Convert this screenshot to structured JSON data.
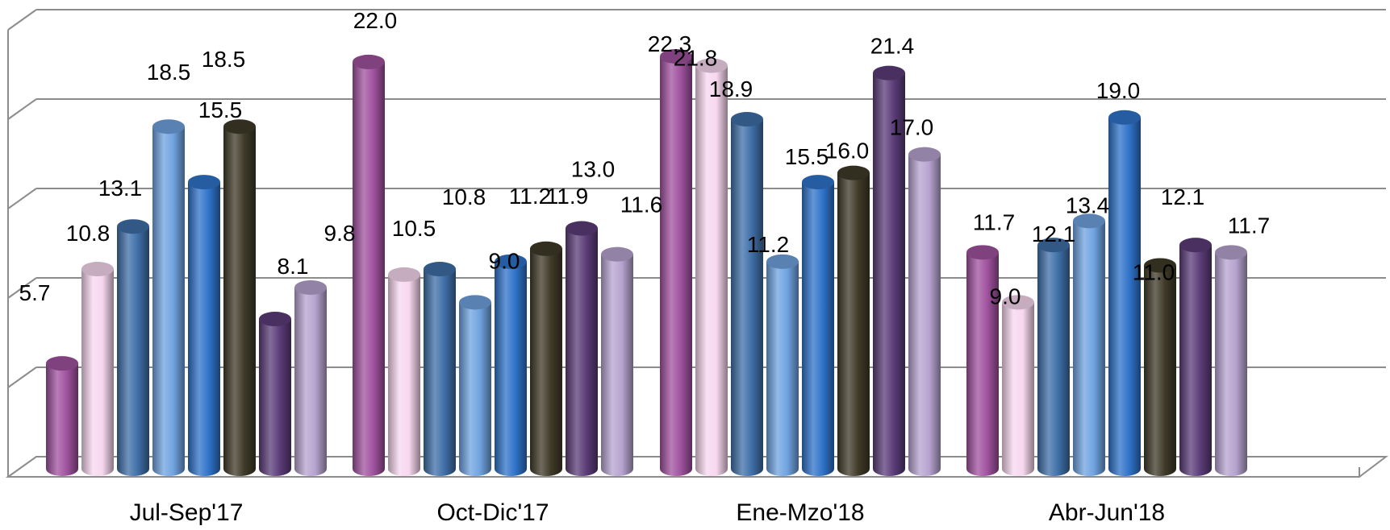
{
  "chart_data": {
    "type": "bar",
    "style": "3d-cylinder",
    "title": "",
    "xlabel": "",
    "ylabel": "",
    "ylim": [
      0,
      25
    ],
    "grid": true,
    "legend": "none",
    "categories": [
      "Jul-Sep'17",
      "Oct-Dic'17",
      "Ene-Mzo'18",
      "Abr-Jun'18"
    ],
    "series": [
      {
        "color": "#a0529f",
        "values": [
          5.7,
          22.0,
          22.3,
          11.7
        ],
        "labels": [
          "5.7",
          "22.0",
          "22.3",
          "11.7"
        ]
      },
      {
        "color": "#f7d7ef",
        "values": [
          10.8,
          10.5,
          21.8,
          9.0
        ],
        "labels": [
          "10.8",
          "10.5",
          "21.8",
          "9.0"
        ]
      },
      {
        "color": "#3f6fa8",
        "values": [
          13.1,
          10.8,
          18.9,
          12.1
        ],
        "labels": [
          "13.1",
          "10.8",
          "18.9",
          "12.1"
        ]
      },
      {
        "color": "#6fa3e0",
        "values": [
          18.5,
          9.0,
          11.2,
          13.4
        ],
        "labels": [
          "18.5",
          "9.0",
          "11.2",
          "13.4"
        ]
      },
      {
        "color": "#2f73c9",
        "values": [
          15.5,
          11.2,
          15.5,
          19.0
        ],
        "labels": [
          "15.5",
          "11.2",
          "15.5",
          "19.0"
        ]
      },
      {
        "color": "#3f3a28",
        "values": [
          18.5,
          11.9,
          16.0,
          11.0
        ],
        "labels": [
          "18.5",
          "11.9",
          "16.0",
          "11.0"
        ]
      },
      {
        "color": "#5b3c78",
        "values": [
          8.1,
          13.0,
          21.4,
          12.1
        ],
        "labels": [
          "8.1",
          "13.0",
          "21.4",
          "12.1"
        ]
      },
      {
        "color": "#b7a3cf",
        "values": [
          9.8,
          11.6,
          17.0,
          11.7
        ],
        "labels": [
          "9.8",
          "11.6",
          "17.0",
          "11.7"
        ]
      }
    ]
  }
}
